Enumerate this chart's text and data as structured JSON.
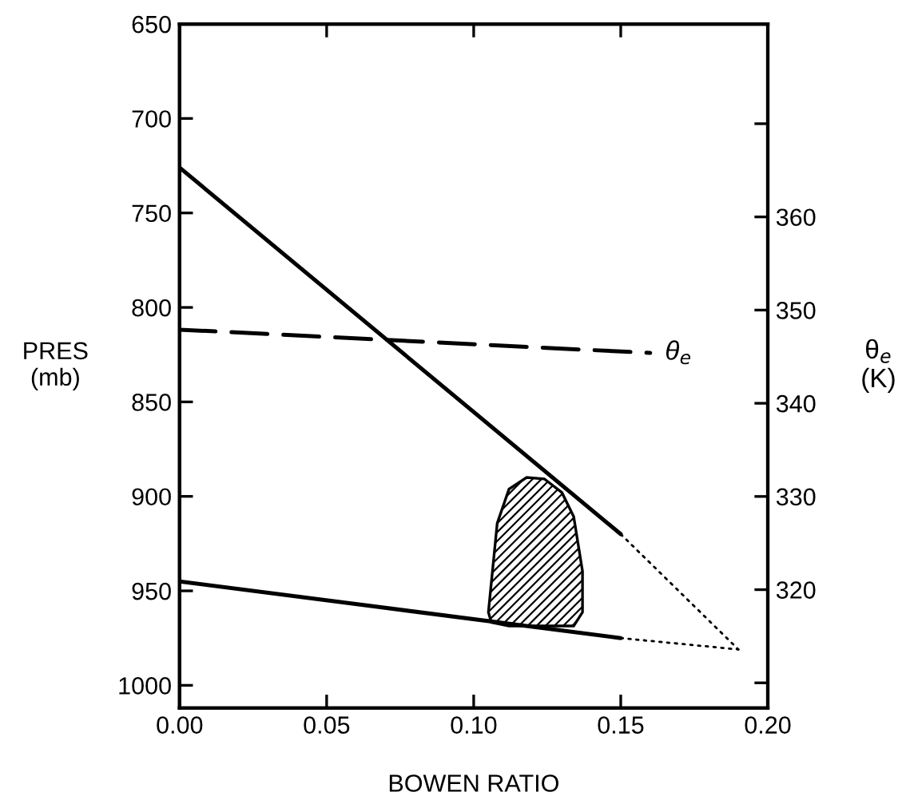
{
  "chart_data": {
    "type": "line",
    "xlabel": "BOWEN RATIO",
    "ylabel": "PRES\n(mb)",
    "y2label": "θ$_{e}$\n(K)",
    "xlim": [
      0,
      0.2
    ],
    "xticks": [
      {
        "value": 0,
        "label": "0.00"
      },
      {
        "value": 0.05,
        "label": "0.05"
      },
      {
        "value": 0.1,
        "label": "0.10"
      },
      {
        "value": 0.15,
        "label": "0.15"
      },
      {
        "value": 0.2,
        "label": "0.20"
      }
    ],
    "ylim": [
      1012,
      650
    ],
    "yticks": [
      650,
      700,
      750,
      800,
      850,
      900,
      950,
      1000
    ],
    "y2lim": [
      307.3,
      380.7
    ],
    "y2ticks": [
      {
        "value": 310,
        "label": null
      },
      320,
      330,
      340,
      350,
      360,
      {
        "value": 370,
        "label": null
      }
    ],
    "grid": false,
    "legend": false,
    "series": [
      {
        "color": "#000000",
        "x": [
          0,
          0.15
        ],
        "values": [
          726,
          920
        ],
        "line_style": "solid"
      },
      {
        "color": "#000000",
        "x": [
          0.15,
          0.19
        ],
        "values": [
          920,
          981
        ],
        "line_style": "dotted"
      },
      {
        "color": "#000000",
        "x": [
          0,
          0.15
        ],
        "values": [
          945,
          975
        ],
        "line_style": "solid"
      },
      {
        "color": "#000000",
        "x": [
          0.15,
          0.19
        ],
        "values": [
          975,
          981
        ],
        "line_style": "dotted"
      },
      {
        "name": "θ$_{e}$",
        "color": "#000000",
        "axis": "y2",
        "x": [
          0,
          0.16
        ],
        "values": [
          347.9,
          345.4
        ],
        "line_style": "dashed"
      }
    ]
  }
}
